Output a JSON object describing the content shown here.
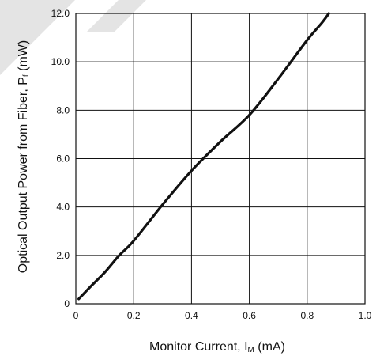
{
  "chart_data": {
    "type": "line",
    "title": "",
    "xlabel": {
      "main": "Monitor Current, I",
      "sub": "M",
      "unit": " (mA)"
    },
    "ylabel": {
      "main": "Optical Output Power from Fiber, P",
      "sub": "f",
      "unit": " (mW)"
    },
    "xlim": [
      0,
      1.0
    ],
    "ylim": [
      0,
      12.0
    ],
    "x_ticks": [
      "0",
      "0.2",
      "0.4",
      "0.6",
      "0.8",
      "1.0"
    ],
    "y_ticks": [
      "0",
      "2.0",
      "4.0",
      "6.0",
      "8.0",
      "10.0",
      "12.0"
    ],
    "grid": true,
    "series": [
      {
        "color": "#111111",
        "x": [
          0.01,
          0.05,
          0.1,
          0.15,
          0.2,
          0.3,
          0.4,
          0.5,
          0.6,
          0.7,
          0.8,
          0.85,
          0.875
        ],
        "y": [
          0.2,
          0.7,
          1.3,
          2.0,
          2.6,
          4.1,
          5.5,
          6.7,
          7.8,
          9.3,
          10.9,
          11.6,
          12.0
        ]
      }
    ]
  }
}
